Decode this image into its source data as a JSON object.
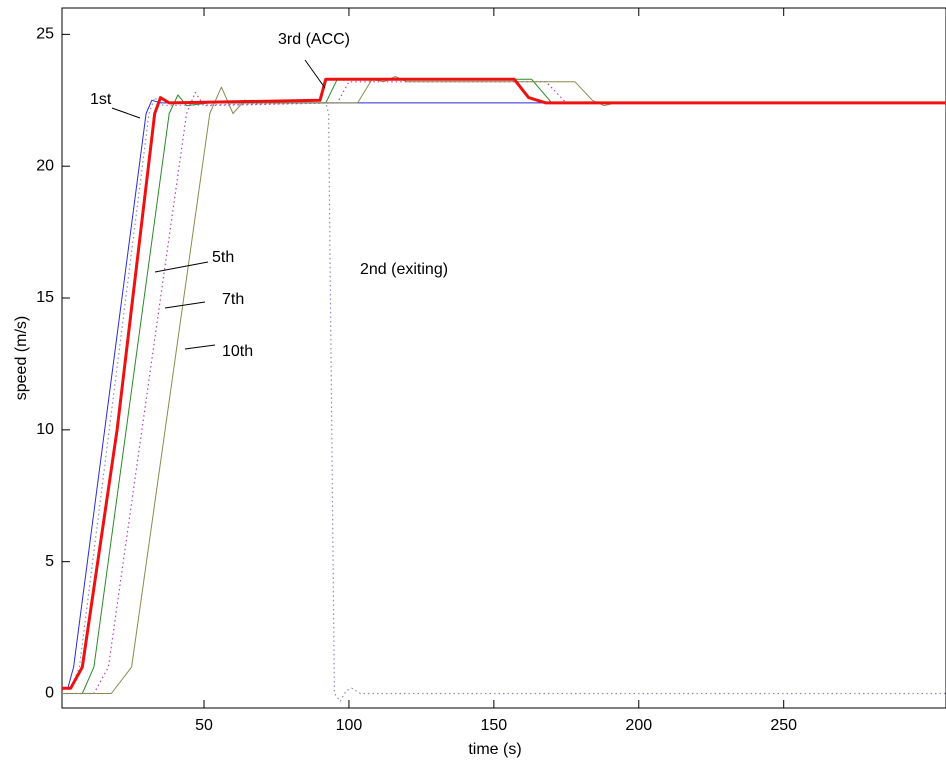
{
  "chart_data": {
    "type": "line",
    "xlabel": "time (s)",
    "ylabel": "speed (m/s)",
    "xlim": [
      1,
      306
    ],
    "ylim": [
      -0.55,
      26
    ],
    "xticks": [
      50,
      100,
      150,
      200,
      250
    ],
    "yticks": [
      0,
      5,
      10,
      15,
      20,
      25
    ],
    "series": [
      {
        "name": "1st",
        "color": "#2b2bd6",
        "style": "solid",
        "x": [
          1,
          3,
          5,
          30,
          32,
          35,
          306
        ],
        "values": [
          0.2,
          0.2,
          1,
          22,
          22.5,
          22.4,
          22.4
        ]
      },
      {
        "name": "2nd (exiting)",
        "color": "#8a8ac0",
        "style": "dotted",
        "x": [
          1,
          4,
          7,
          31,
          33,
          36,
          92,
          93,
          95,
          97,
          99,
          101,
          104,
          306
        ],
        "values": [
          0.2,
          0.2,
          1,
          22,
          22.6,
          22.3,
          22.4,
          22,
          0,
          -0.3,
          0.1,
          0.2,
          0,
          0
        ]
      },
      {
        "name": "5th",
        "color": "#2a8a2a",
        "style": "solid",
        "x": [
          1,
          8,
          12,
          38,
          41,
          44,
          52,
          92,
          96,
          163,
          170,
          306
        ],
        "values": [
          0,
          0,
          1,
          22,
          22.7,
          22.3,
          22.4,
          22.4,
          23.3,
          23.3,
          22.4,
          22.4
        ]
      },
      {
        "name": "7th",
        "color": "#b040c0",
        "style": "dotted",
        "x": [
          1,
          12,
          17,
          44,
          47,
          50,
          96,
          100,
          168,
          175,
          306
        ],
        "values": [
          0,
          0,
          1,
          22,
          22.8,
          22.3,
          22.4,
          23.2,
          23.2,
          22.4,
          22.4
        ]
      },
      {
        "name": "10th",
        "color": "#8a8a50",
        "style": "solid",
        "x": [
          1,
          18,
          25,
          52,
          56,
          60,
          64,
          70,
          103,
          108,
          112,
          116,
          120,
          178,
          184,
          188,
          192,
          306
        ],
        "values": [
          0,
          0,
          1,
          22,
          23,
          22,
          22.5,
          22.4,
          22.4,
          23.3,
          23.2,
          23.4,
          23.2,
          23.2,
          22.5,
          22.3,
          22.4,
          22.4
        ]
      },
      {
        "name": "3rd (ACC)",
        "color": "#ee1111",
        "style": "thick",
        "x": [
          1,
          4,
          8,
          20,
          33,
          35,
          38,
          90,
          92,
          157,
          162,
          168,
          306
        ],
        "values": [
          0.2,
          0.2,
          1,
          10,
          22,
          22.6,
          22.4,
          22.5,
          23.3,
          23.3,
          22.6,
          22.4,
          22.4
        ]
      }
    ]
  }
}
